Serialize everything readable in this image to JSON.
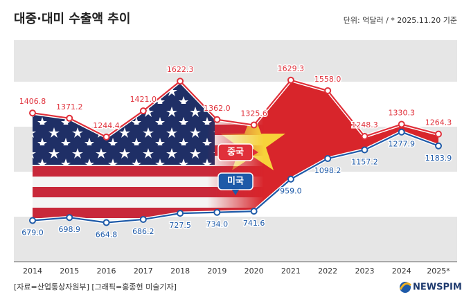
{
  "chart_data": {
    "type": "line",
    "title": "대중·대미 수출액 추이",
    "subtitle": "단위: 억달러 / * 2025.11.20 기준",
    "source": "[자료=산업통상자원부] [그래픽=홍종현 미술기자]",
    "logo": "NEWSPIM",
    "categories": [
      "2014",
      "2015",
      "2016",
      "2017",
      "2018",
      "2019",
      "2020",
      "2021",
      "2022",
      "2023",
      "2024",
      "2025*"
    ],
    "series": [
      {
        "name": "중국",
        "color": "#e0303a",
        "values": [
          1406.8,
          1371.2,
          1244.4,
          1421.0,
          1622.3,
          1362.0,
          1325.6,
          1629.3,
          1558.0,
          1248.3,
          1330.3,
          1264.3
        ],
        "value_labels": [
          "1406.8",
          "1371.2",
          "1244.4",
          "1421.0",
          "1622.3",
          "1362.0",
          "1325.6",
          "1629.3",
          "1558.0",
          "1248.3",
          "1330.3",
          "1264.3"
        ]
      },
      {
        "name": "미국",
        "color": "#1e5aa8",
        "values": [
          679.0,
          698.9,
          664.8,
          686.2,
          727.5,
          734.0,
          741.6,
          959.0,
          1098.2,
          1157.2,
          1277.9,
          1183.9
        ],
        "value_labels": [
          "679.0",
          "698.9",
          "664.8",
          "686.2",
          "727.5",
          "734.0",
          "741.6",
          "959.0",
          "1098.2",
          "1157.2",
          "1277.9",
          "1183.9"
        ]
      }
    ],
    "ylim": [
      400,
      1900
    ]
  }
}
